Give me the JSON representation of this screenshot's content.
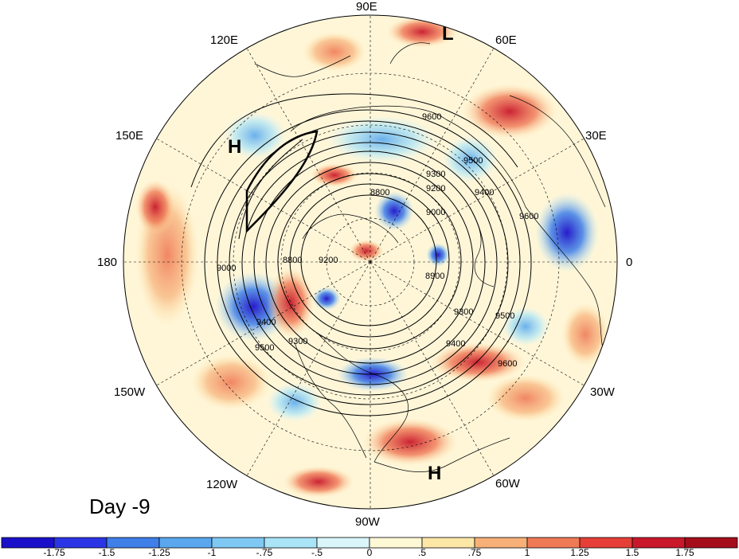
{
  "map": {
    "projection": "north-polar-stereographic",
    "day_label": "Day -9",
    "longitude_labels": [
      "90E",
      "60E",
      "30E",
      "0",
      "30W",
      "60W",
      "90W",
      "120W",
      "150W",
      "180",
      "150E",
      "120E"
    ],
    "centers": [
      {
        "type": "L",
        "label": "L",
        "near": "60E-90E, outer"
      },
      {
        "type": "H",
        "label": "H",
        "near": "150E-120E"
      },
      {
        "type": "H",
        "label": "H",
        "near": "60W-90W, outer"
      }
    ],
    "contour_levels": [
      "8800",
      "8900",
      "9000",
      "9200",
      "9300",
      "9400",
      "9500",
      "9600"
    ],
    "contour_labels": [
      "9600",
      "9500",
      "9400",
      "9300",
      "9200",
      "9000",
      "8900",
      "8800",
      "9600",
      "9500",
      "9400",
      "9300",
      "8800",
      "9600",
      "9500",
      "9400",
      "9300",
      "9200",
      "9000"
    ],
    "colors": {
      "strong_negative": "#1b10c9",
      "strong_positive": "#a50d1b",
      "neutral": "#ffffff"
    }
  },
  "colorbar": {
    "ticks": [
      "-1.75",
      "-1.5",
      "-1.25",
      "-1",
      "-.75",
      "-.5",
      "0",
      ".5",
      ".75",
      "1",
      "1.25",
      "1.5",
      "1.75"
    ],
    "bins": [
      {
        "color": "#1b10c9"
      },
      {
        "color": "#2a35e5"
      },
      {
        "color": "#3e7fe8"
      },
      {
        "color": "#5aa7ee"
      },
      {
        "color": "#7ec8f3"
      },
      {
        "color": "#a9e4f7"
      },
      {
        "color": "#daf6fb"
      },
      {
        "color": "#fff8d6"
      },
      {
        "color": "#fde7a6"
      },
      {
        "color": "#f7b077"
      },
      {
        "color": "#ef7a56"
      },
      {
        "color": "#e63f37"
      },
      {
        "color": "#c8182a"
      },
      {
        "color": "#a50d1b"
      }
    ]
  }
}
